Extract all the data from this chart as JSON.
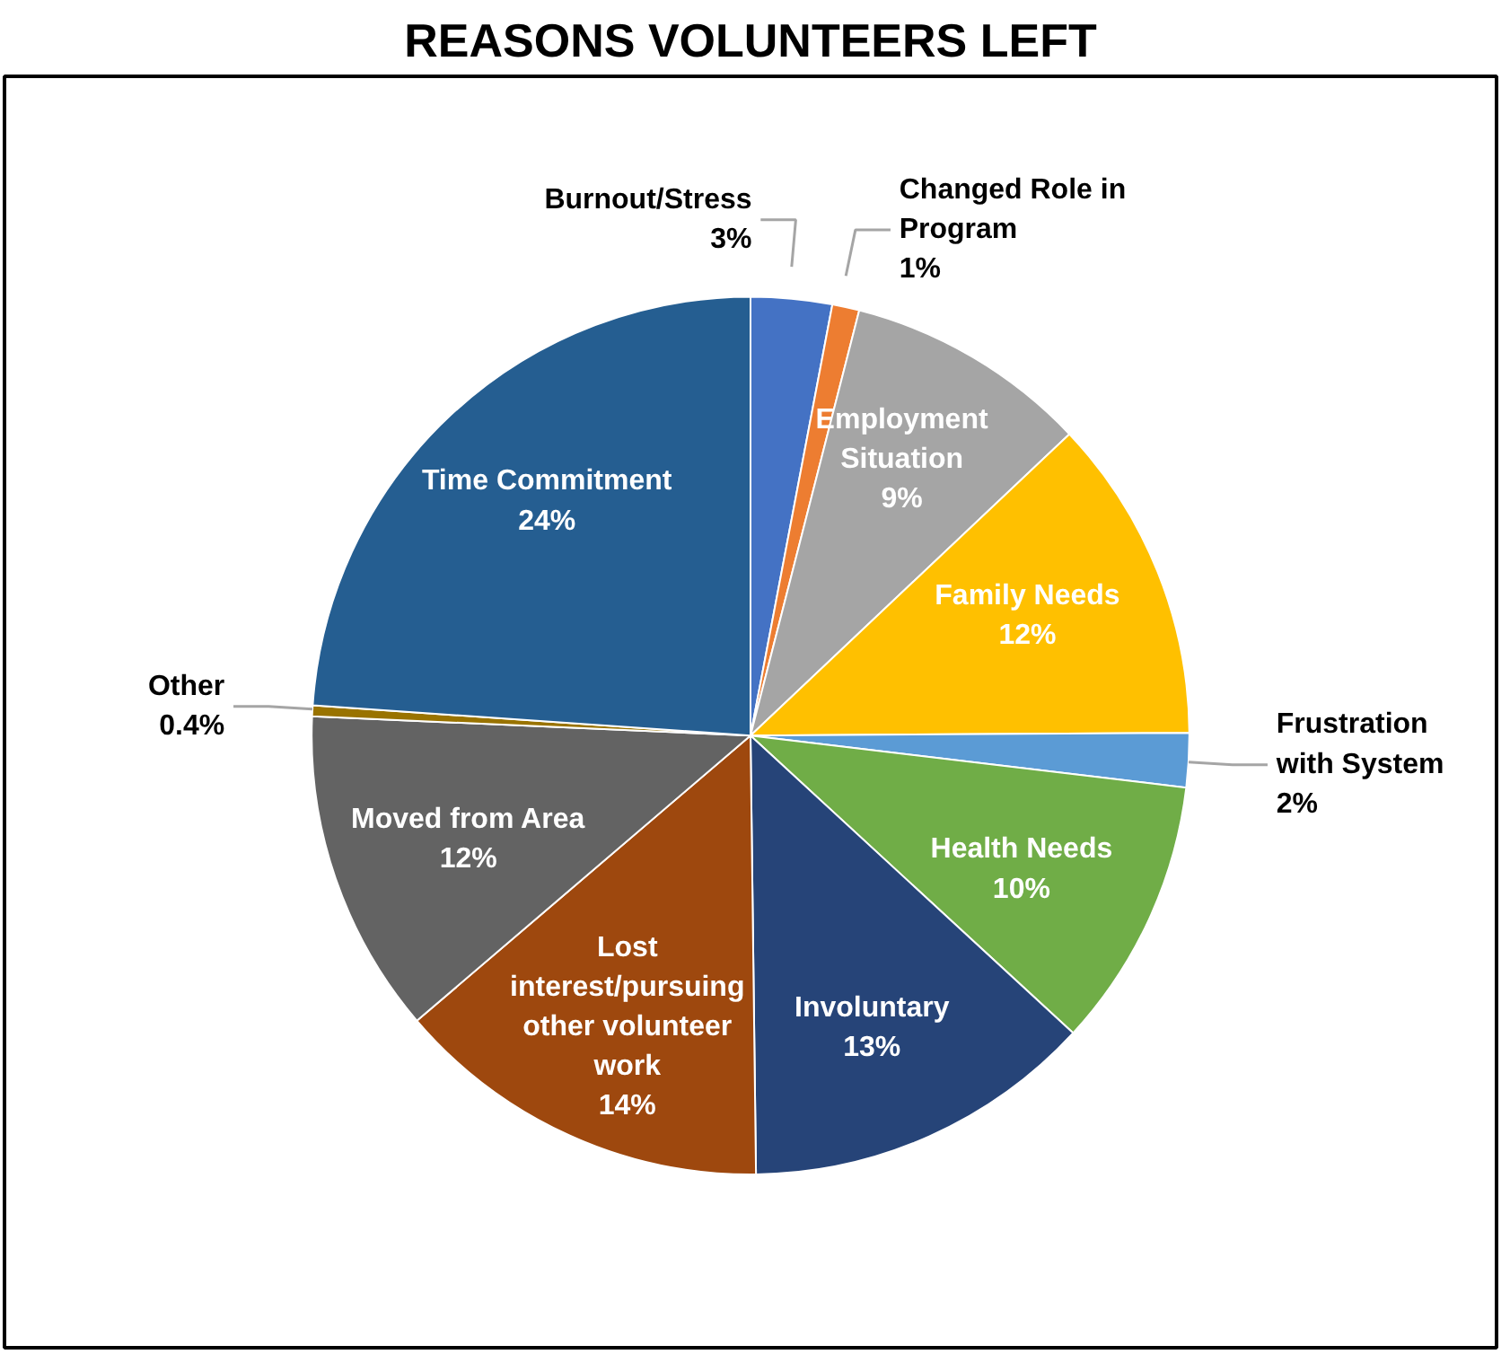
{
  "chart_data": {
    "type": "pie",
    "title": "REASONS VOLUNTEERS LEFT",
    "categories": [
      "Burnout/Stress",
      "Changed Role in Program",
      "Employment Situation",
      "Family Needs",
      "Frustration with System",
      "Health Needs",
      "Involuntary",
      "Lost interest/pursuing other volunteer work",
      "Moved from Area",
      "Other",
      "Time Commitment"
    ],
    "values": [
      3,
      1,
      9,
      12,
      2,
      10,
      13,
      14,
      12,
      0.4,
      24
    ],
    "value_labels": [
      "3%",
      "1%",
      "9%",
      "12%",
      "2%",
      "10%",
      "13%",
      "14%",
      "12%",
      "0.4%",
      "24%"
    ],
    "colors": [
      "#4472c4",
      "#ed7d31",
      "#a5a5a5",
      "#ffc000",
      "#5b9bd5",
      "#70ad47",
      "#264478",
      "#9e480e",
      "#636363",
      "#997300",
      "#255e91"
    ]
  }
}
